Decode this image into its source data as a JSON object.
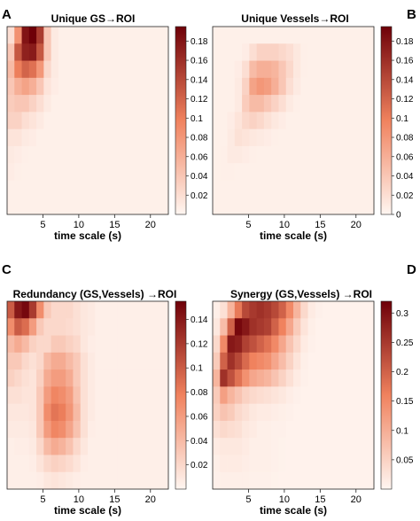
{
  "colors": {
    "low": "#fff6f1",
    "mid": "#f0825e",
    "high": "#6e0008"
  },
  "chart_data": [
    {
      "type": "heatmap",
      "panel": "A",
      "title": "Unique GS→ROI",
      "xlabel": "time scale (s)",
      "xticks": [
        "5",
        "10",
        "15",
        "20"
      ],
      "xlim": [
        0,
        22.5
      ],
      "colorbar_ticks": [
        "0.02",
        "0.04",
        "0.06",
        "0.08",
        "0.1",
        "0.12",
        "0.14",
        "0.16",
        "0.18"
      ],
      "colorbar_range": [
        0,
        0.195
      ],
      "values": [
        [
          0.02,
          0.085,
          0.18,
          0.195,
          0.15,
          0.04,
          0.01,
          0.005,
          0.005,
          0.005,
          0.005,
          0.005,
          0.005,
          0.005,
          0.005,
          0.005,
          0.005,
          0.005,
          0.005,
          0.005,
          0.005,
          0.005
        ],
        [
          0.04,
          0.13,
          0.17,
          0.175,
          0.13,
          0.04,
          0.01,
          0.005,
          0.005,
          0.005,
          0.005,
          0.005,
          0.005,
          0.005,
          0.005,
          0.005,
          0.005,
          0.005,
          0.005,
          0.005,
          0.005,
          0.005
        ],
        [
          0.05,
          0.1,
          0.12,
          0.11,
          0.08,
          0.025,
          0.01,
          0.005,
          0.005,
          0.005,
          0.005,
          0.005,
          0.005,
          0.005,
          0.005,
          0.005,
          0.005,
          0.005,
          0.005,
          0.005,
          0.005,
          0.005
        ],
        [
          0.04,
          0.06,
          0.07,
          0.06,
          0.04,
          0.015,
          0.008,
          0.005,
          0.005,
          0.005,
          0.005,
          0.005,
          0.005,
          0.005,
          0.005,
          0.005,
          0.005,
          0.005,
          0.005,
          0.005,
          0.005,
          0.005
        ],
        [
          0.035,
          0.04,
          0.04,
          0.03,
          0.02,
          0.01,
          0.005,
          0.005,
          0.005,
          0.005,
          0.005,
          0.005,
          0.005,
          0.005,
          0.005,
          0.005,
          0.005,
          0.005,
          0.005,
          0.005,
          0.005,
          0.005
        ],
        [
          0.03,
          0.03,
          0.02,
          0.015,
          0.01,
          0.005,
          0.005,
          0.005,
          0.005,
          0.005,
          0.005,
          0.005,
          0.005,
          0.005,
          0.005,
          0.005,
          0.005,
          0.005,
          0.005,
          0.005,
          0.005,
          0.005
        ],
        [
          0.015,
          0.015,
          0.01,
          0.008,
          0.005,
          0.005,
          0.005,
          0.005,
          0.005,
          0.005,
          0.005,
          0.005,
          0.005,
          0.005,
          0.005,
          0.005,
          0.005,
          0.005,
          0.005,
          0.005,
          0.005,
          0.005
        ],
        [
          0.01,
          0.008,
          0.006,
          0.005,
          0.005,
          0.005,
          0.005,
          0.005,
          0.005,
          0.005,
          0.005,
          0.005,
          0.005,
          0.005,
          0.005,
          0.005,
          0.005,
          0.005,
          0.005,
          0.005,
          0.005,
          0.005
        ],
        [
          0.008,
          0.006,
          0.005,
          0.005,
          0.005,
          0.005,
          0.005,
          0.005,
          0.005,
          0.005,
          0.005,
          0.005,
          0.005,
          0.005,
          0.005,
          0.005,
          0.005,
          0.005,
          0.005,
          0.005,
          0.005,
          0.005
        ],
        [
          0.005,
          0.005,
          0.005,
          0.005,
          0.005,
          0.005,
          0.005,
          0.005,
          0.005,
          0.005,
          0.005,
          0.005,
          0.005,
          0.005,
          0.005,
          0.005,
          0.005,
          0.005,
          0.005,
          0.005,
          0.005,
          0.005
        ],
        [
          0.005,
          0.005,
          0.005,
          0.005,
          0.005,
          0.005,
          0.005,
          0.005,
          0.005,
          0.005,
          0.005,
          0.005,
          0.005,
          0.005,
          0.005,
          0.005,
          0.005,
          0.005,
          0.005,
          0.005,
          0.005,
          0.005
        ]
      ]
    },
    {
      "type": "heatmap",
      "panel": "B",
      "title": "Unique Vessels→ROI",
      "xlabel": "time scale (s)",
      "xticks": [
        "5",
        "10",
        "15",
        "20"
      ],
      "xlim": [
        0,
        22.5
      ],
      "colorbar_ticks": [
        "0",
        "0.02",
        "0.04",
        "0.06",
        "0.08",
        "0.1",
        "0.12",
        "0.14",
        "0.16",
        "0.18"
      ],
      "colorbar_range": [
        0,
        0.195
      ],
      "values": [
        [
          0.005,
          0.005,
          0.005,
          0.005,
          0.005,
          0.005,
          0.005,
          0.005,
          0.005,
          0.005,
          0.005,
          0.005,
          0.005,
          0.005,
          0.005,
          0.005,
          0.005,
          0.005,
          0.005,
          0.005,
          0.005,
          0.005
        ],
        [
          0.005,
          0.005,
          0.005,
          0.005,
          0.008,
          0.02,
          0.03,
          0.03,
          0.03,
          0.025,
          0.02,
          0.012,
          0.006,
          0.005,
          0.005,
          0.005,
          0.005,
          0.005,
          0.005,
          0.005,
          0.005,
          0.005
        ],
        [
          0.005,
          0.005,
          0.005,
          0.008,
          0.02,
          0.05,
          0.06,
          0.06,
          0.055,
          0.04,
          0.025,
          0.012,
          0.006,
          0.005,
          0.005,
          0.005,
          0.005,
          0.005,
          0.005,
          0.005,
          0.005,
          0.005
        ],
        [
          0.005,
          0.005,
          0.005,
          0.01,
          0.03,
          0.07,
          0.08,
          0.075,
          0.06,
          0.04,
          0.02,
          0.01,
          0.005,
          0.005,
          0.005,
          0.005,
          0.005,
          0.005,
          0.005,
          0.005,
          0.005,
          0.005
        ],
        [
          0.005,
          0.005,
          0.005,
          0.01,
          0.035,
          0.05,
          0.05,
          0.04,
          0.03,
          0.02,
          0.01,
          0.006,
          0.005,
          0.005,
          0.005,
          0.005,
          0.005,
          0.005,
          0.005,
          0.005,
          0.005,
          0.005
        ],
        [
          0.005,
          0.005,
          0.008,
          0.015,
          0.025,
          0.03,
          0.025,
          0.018,
          0.012,
          0.008,
          0.005,
          0.005,
          0.005,
          0.005,
          0.005,
          0.005,
          0.005,
          0.005,
          0.005,
          0.005,
          0.005,
          0.005
        ],
        [
          0.005,
          0.005,
          0.01,
          0.018,
          0.015,
          0.012,
          0.01,
          0.008,
          0.006,
          0.005,
          0.005,
          0.005,
          0.005,
          0.005,
          0.005,
          0.005,
          0.005,
          0.005,
          0.005,
          0.005,
          0.005,
          0.005
        ],
        [
          0.005,
          0.006,
          0.01,
          0.01,
          0.008,
          0.006,
          0.005,
          0.005,
          0.005,
          0.005,
          0.005,
          0.005,
          0.005,
          0.005,
          0.005,
          0.005,
          0.005,
          0.005,
          0.005,
          0.005,
          0.005,
          0.005
        ],
        [
          0.005,
          0.006,
          0.006,
          0.005,
          0.005,
          0.005,
          0.005,
          0.005,
          0.005,
          0.005,
          0.005,
          0.005,
          0.005,
          0.005,
          0.005,
          0.005,
          0.005,
          0.005,
          0.005,
          0.005,
          0.005,
          0.005
        ],
        [
          0.005,
          0.005,
          0.005,
          0.005,
          0.005,
          0.005,
          0.005,
          0.005,
          0.005,
          0.005,
          0.005,
          0.005,
          0.005,
          0.005,
          0.005,
          0.005,
          0.005,
          0.005,
          0.005,
          0.005,
          0.005,
          0.005
        ],
        [
          0.005,
          0.005,
          0.005,
          0.005,
          0.005,
          0.005,
          0.005,
          0.005,
          0.005,
          0.005,
          0.005,
          0.005,
          0.005,
          0.005,
          0.005,
          0.005,
          0.005,
          0.005,
          0.005,
          0.005,
          0.005,
          0.005
        ]
      ]
    },
    {
      "type": "heatmap",
      "panel": "C",
      "title": "Redundancy (GS,Vessels) →ROI",
      "xlabel": "time scale (s)",
      "xticks": [
        "5",
        "10",
        "15",
        "20"
      ],
      "xlim": [
        0,
        22.5
      ],
      "colorbar_ticks": [
        "0.02",
        "0.04",
        "0.06",
        "0.08",
        "0.1",
        "0.12",
        "0.14"
      ],
      "colorbar_range": [
        0,
        0.155
      ],
      "values": [
        [
          0.1,
          0.14,
          0.15,
          0.12,
          0.07,
          0.03,
          0.02,
          0.02,
          0.02,
          0.015,
          0.01,
          0.008,
          0.005,
          0.005,
          0.005,
          0.005,
          0.005,
          0.005,
          0.005,
          0.005,
          0.005,
          0.005
        ],
        [
          0.07,
          0.1,
          0.09,
          0.06,
          0.03,
          0.02,
          0.02,
          0.02,
          0.018,
          0.015,
          0.01,
          0.008,
          0.005,
          0.005,
          0.005,
          0.005,
          0.005,
          0.005,
          0.005,
          0.005,
          0.005,
          0.005
        ],
        [
          0.04,
          0.05,
          0.04,
          0.025,
          0.02,
          0.02,
          0.03,
          0.03,
          0.025,
          0.02,
          0.01,
          0.006,
          0.005,
          0.005,
          0.005,
          0.005,
          0.005,
          0.005,
          0.005,
          0.005,
          0.005,
          0.005
        ],
        [
          0.03,
          0.03,
          0.02,
          0.015,
          0.02,
          0.04,
          0.05,
          0.05,
          0.04,
          0.03,
          0.015,
          0.008,
          0.005,
          0.005,
          0.005,
          0.005,
          0.005,
          0.005,
          0.005,
          0.005,
          0.005,
          0.005
        ],
        [
          0.025,
          0.02,
          0.015,
          0.012,
          0.025,
          0.05,
          0.06,
          0.06,
          0.05,
          0.03,
          0.015,
          0.008,
          0.005,
          0.005,
          0.005,
          0.005,
          0.005,
          0.005,
          0.005,
          0.005,
          0.005,
          0.005
        ],
        [
          0.015,
          0.015,
          0.012,
          0.012,
          0.03,
          0.06,
          0.075,
          0.07,
          0.06,
          0.035,
          0.015,
          0.008,
          0.005,
          0.005,
          0.005,
          0.005,
          0.005,
          0.005,
          0.005,
          0.005,
          0.005,
          0.005
        ],
        [
          0.01,
          0.01,
          0.01,
          0.012,
          0.03,
          0.07,
          0.085,
          0.08,
          0.065,
          0.04,
          0.015,
          0.008,
          0.005,
          0.005,
          0.005,
          0.005,
          0.005,
          0.005,
          0.005,
          0.005,
          0.005,
          0.005
        ],
        [
          0.008,
          0.008,
          0.008,
          0.01,
          0.03,
          0.06,
          0.075,
          0.07,
          0.055,
          0.035,
          0.015,
          0.006,
          0.005,
          0.005,
          0.005,
          0.005,
          0.005,
          0.005,
          0.005,
          0.005,
          0.005,
          0.005
        ],
        [
          0.005,
          0.006,
          0.006,
          0.008,
          0.02,
          0.04,
          0.05,
          0.045,
          0.035,
          0.02,
          0.01,
          0.005,
          0.005,
          0.005,
          0.005,
          0.005,
          0.005,
          0.005,
          0.005,
          0.005,
          0.005,
          0.005
        ],
        [
          0.005,
          0.005,
          0.005,
          0.006,
          0.012,
          0.02,
          0.025,
          0.022,
          0.018,
          0.012,
          0.006,
          0.005,
          0.005,
          0.005,
          0.005,
          0.005,
          0.005,
          0.005,
          0.005,
          0.005,
          0.005,
          0.005
        ],
        [
          0.005,
          0.005,
          0.005,
          0.005,
          0.006,
          0.01,
          0.012,
          0.01,
          0.008,
          0.006,
          0.005,
          0.005,
          0.005,
          0.005,
          0.005,
          0.005,
          0.005,
          0.005,
          0.005,
          0.005,
          0.005,
          0.005
        ]
      ]
    },
    {
      "type": "heatmap",
      "panel": "D",
      "title": "Synergy (GS,Vessels) →ROI",
      "xlabel": "time scale (s)",
      "xticks": [
        "5",
        "10",
        "15",
        "20"
      ],
      "xlim": [
        0,
        22.5
      ],
      "colorbar_ticks": [
        "0.05",
        "0.1",
        "0.15",
        "0.2",
        "0.25",
        "0.3"
      ],
      "colorbar_range": [
        0,
        0.32
      ],
      "values": [
        [
          0.01,
          0.03,
          0.09,
          0.17,
          0.23,
          0.25,
          0.26,
          0.25,
          0.23,
          0.2,
          0.15,
          0.09,
          0.04,
          0.015,
          0.008,
          0.005,
          0.005,
          0.005,
          0.005,
          0.005,
          0.005,
          0.005
        ],
        [
          0.02,
          0.08,
          0.2,
          0.31,
          0.29,
          0.26,
          0.25,
          0.24,
          0.2,
          0.16,
          0.11,
          0.06,
          0.025,
          0.01,
          0.005,
          0.005,
          0.005,
          0.005,
          0.005,
          0.005,
          0.005,
          0.005
        ],
        [
          0.04,
          0.15,
          0.29,
          0.28,
          0.24,
          0.22,
          0.2,
          0.18,
          0.15,
          0.11,
          0.07,
          0.04,
          0.015,
          0.008,
          0.005,
          0.005,
          0.005,
          0.005,
          0.005,
          0.005,
          0.005,
          0.005
        ],
        [
          0.06,
          0.2,
          0.26,
          0.23,
          0.19,
          0.16,
          0.15,
          0.14,
          0.11,
          0.08,
          0.05,
          0.025,
          0.01,
          0.005,
          0.005,
          0.005,
          0.005,
          0.005,
          0.005,
          0.005,
          0.005,
          0.005
        ],
        [
          0.09,
          0.26,
          0.22,
          0.18,
          0.14,
          0.11,
          0.1,
          0.09,
          0.07,
          0.05,
          0.03,
          0.015,
          0.008,
          0.005,
          0.005,
          0.005,
          0.005,
          0.005,
          0.005,
          0.005,
          0.005,
          0.005
        ],
        [
          0.06,
          0.12,
          0.09,
          0.07,
          0.05,
          0.04,
          0.035,
          0.03,
          0.025,
          0.02,
          0.012,
          0.008,
          0.005,
          0.005,
          0.005,
          0.005,
          0.005,
          0.005,
          0.005,
          0.005,
          0.005,
          0.005
        ],
        [
          0.05,
          0.07,
          0.06,
          0.04,
          0.03,
          0.02,
          0.015,
          0.015,
          0.012,
          0.01,
          0.008,
          0.005,
          0.005,
          0.005,
          0.005,
          0.005,
          0.005,
          0.005,
          0.005,
          0.005,
          0.005,
          0.005
        ],
        [
          0.03,
          0.04,
          0.035,
          0.03,
          0.02,
          0.015,
          0.01,
          0.01,
          0.008,
          0.008,
          0.005,
          0.005,
          0.005,
          0.005,
          0.005,
          0.005,
          0.005,
          0.005,
          0.005,
          0.005,
          0.005,
          0.005
        ],
        [
          0.015,
          0.02,
          0.02,
          0.02,
          0.015,
          0.01,
          0.01,
          0.01,
          0.008,
          0.006,
          0.005,
          0.005,
          0.005,
          0.005,
          0.005,
          0.005,
          0.005,
          0.005,
          0.005,
          0.005,
          0.005,
          0.005
        ],
        [
          0.01,
          0.015,
          0.015,
          0.015,
          0.012,
          0.01,
          0.01,
          0.01,
          0.008,
          0.006,
          0.005,
          0.005,
          0.005,
          0.005,
          0.005,
          0.005,
          0.005,
          0.005,
          0.005,
          0.005,
          0.005,
          0.005
        ],
        [
          0.008,
          0.01,
          0.01,
          0.01,
          0.01,
          0.008,
          0.008,
          0.008,
          0.006,
          0.005,
          0.005,
          0.005,
          0.005,
          0.005,
          0.005,
          0.005,
          0.005,
          0.005,
          0.005,
          0.005,
          0.005,
          0.005
        ]
      ]
    }
  ]
}
